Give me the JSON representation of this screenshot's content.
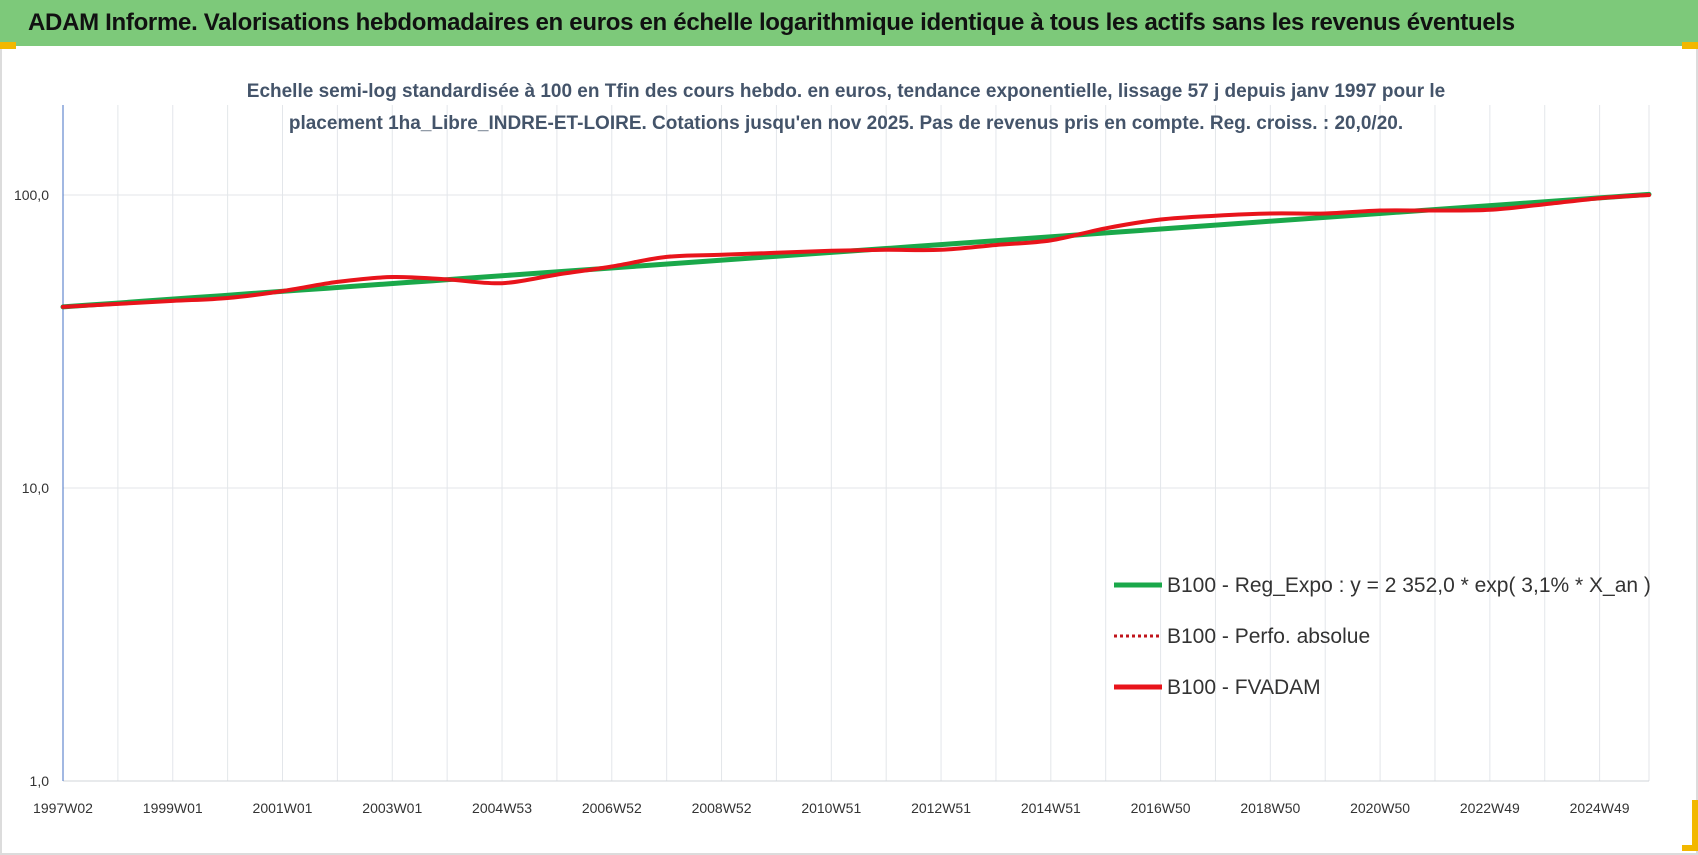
{
  "banner": {
    "title": "ADAM Informe. Valorisations hebdomadaires en euros en échelle logarithmique identique à tous les actifs sans les revenus éventuels"
  },
  "colors": {
    "banner": "#7dc97a",
    "corner": "#f2b800",
    "reg_series": "#1aa84a",
    "fvadam_series": "#e8141b",
    "perfo_series": "#c0141b",
    "subtitle": "#44546a"
  },
  "chart_data": {
    "type": "line",
    "subtitle_lines": [
      "Echelle semi-log standardisée à 100 en Tfin des cours hebdo. en euros, tendance exponentielle, lissage 57 j depuis janv 1997 pour le",
      "placement 1ha_Libre_INDRE-ET-LOIRE. Cotations jusqu'en nov 2025. Pas de revenus pris en compte. Reg. croiss. : 20,0/20."
    ],
    "y_scale": "log",
    "ylim": [
      1,
      200
    ],
    "y_ticks": [
      {
        "value": 1,
        "label": "1,0"
      },
      {
        "value": 10,
        "label": "10,0"
      },
      {
        "value": 100,
        "label": "100,0"
      }
    ],
    "xlim": [
      1997.0,
      2025.9
    ],
    "x_ticks": [
      {
        "x": 1997.0,
        "label": "1997W02"
      },
      {
        "x": 1999.0,
        "label": "1999W01"
      },
      {
        "x": 2001.0,
        "label": "2001W01"
      },
      {
        "x": 2003.0,
        "label": "2003W01"
      },
      {
        "x": 2005.0,
        "label": "2004W53"
      },
      {
        "x": 2007.0,
        "label": "2006W52"
      },
      {
        "x": 2009.0,
        "label": "2008W52"
      },
      {
        "x": 2011.0,
        "label": "2010W51"
      },
      {
        "x": 2013.0,
        "label": "2012W51"
      },
      {
        "x": 2015.0,
        "label": "2014W51"
      },
      {
        "x": 2017.0,
        "label": "2016W50"
      },
      {
        "x": 2019.0,
        "label": "2018W50"
      },
      {
        "x": 2021.0,
        "label": "2020W50"
      },
      {
        "x": 2023.0,
        "label": "2022W49"
      },
      {
        "x": 2025.0,
        "label": "2024W49"
      }
    ],
    "grid": true,
    "legend_position": "bottom-right",
    "series": [
      {
        "name": "B100 - Reg_Expo : y = 2 352,0 * exp( 3,1% *  X_an )",
        "style": "solid-green",
        "x": [
          1997.0,
          2025.9
        ],
        "values": [
          41.5,
          100.5
        ]
      },
      {
        "name": "B100 - Perfo. absolue",
        "style": "dotted-red",
        "x": [
          1997.0,
          1998.0,
          1999.0,
          2000.0,
          2001.0,
          2002.0,
          2003.0,
          2004.0,
          2005.0,
          2006.0,
          2007.0,
          2008.0,
          2009.0,
          2010.0,
          2011.0,
          2012.0,
          2013.0,
          2014.0,
          2015.0,
          2016.0,
          2017.0,
          2018.0,
          2019.0,
          2020.0,
          2021.0,
          2022.0,
          2023.0,
          2024.0,
          2025.0,
          2025.9
        ],
        "values": [
          41.5,
          42.5,
          43.5,
          44.5,
          47.0,
          50.5,
          52.5,
          51.5,
          50.0,
          53.5,
          57.0,
          61.5,
          62.5,
          63.5,
          64.5,
          65.0,
          65.0,
          67.5,
          70.0,
          77.0,
          82.5,
          85.0,
          86.5,
          86.5,
          88.5,
          88.5,
          89.0,
          93.0,
          97.5,
          100.0
        ]
      },
      {
        "name": "B100 - FVADAM",
        "style": "solid-red",
        "x": [
          1997.0,
          1998.0,
          1999.0,
          2000.0,
          2001.0,
          2002.0,
          2003.0,
          2004.0,
          2005.0,
          2006.0,
          2007.0,
          2008.0,
          2009.0,
          2010.0,
          2011.0,
          2012.0,
          2013.0,
          2014.0,
          2015.0,
          2016.0,
          2017.0,
          2018.0,
          2019.0,
          2020.0,
          2021.0,
          2022.0,
          2023.0,
          2024.0,
          2025.0,
          2025.9
        ],
        "values": [
          41.5,
          42.5,
          43.5,
          44.5,
          47.0,
          50.5,
          52.5,
          51.5,
          50.0,
          53.5,
          57.0,
          61.5,
          62.5,
          63.5,
          64.5,
          65.0,
          65.0,
          67.5,
          70.0,
          77.0,
          82.5,
          85.0,
          86.5,
          86.5,
          88.5,
          88.5,
          89.0,
          93.0,
          97.5,
          100.0
        ]
      }
    ]
  }
}
